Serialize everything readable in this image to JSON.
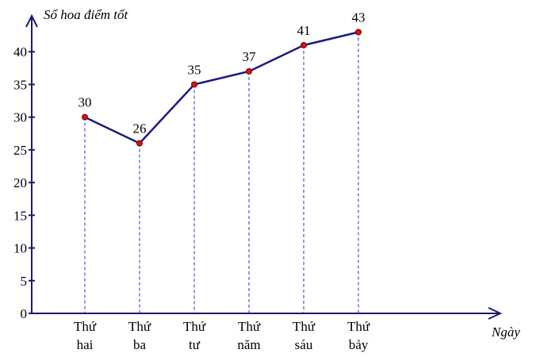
{
  "chart_data": {
    "type": "line",
    "y_axis_label": "Số hoa điểm tốt",
    "x_axis_label": "Ngày",
    "categories": [
      "Thứ hai",
      "Thứ ba",
      "Thứ tư",
      "Thứ năm",
      "Thứ sáu",
      "Thứ bảy"
    ],
    "values": [
      30,
      26,
      35,
      37,
      41,
      43
    ],
    "color": "#1a1a80",
    "marker_color": "#e01010",
    "drop_lines": true,
    "ylim": [
      0,
      45
    ],
    "yticks": [
      0,
      5,
      10,
      15,
      20,
      25,
      30,
      35,
      40
    ]
  }
}
